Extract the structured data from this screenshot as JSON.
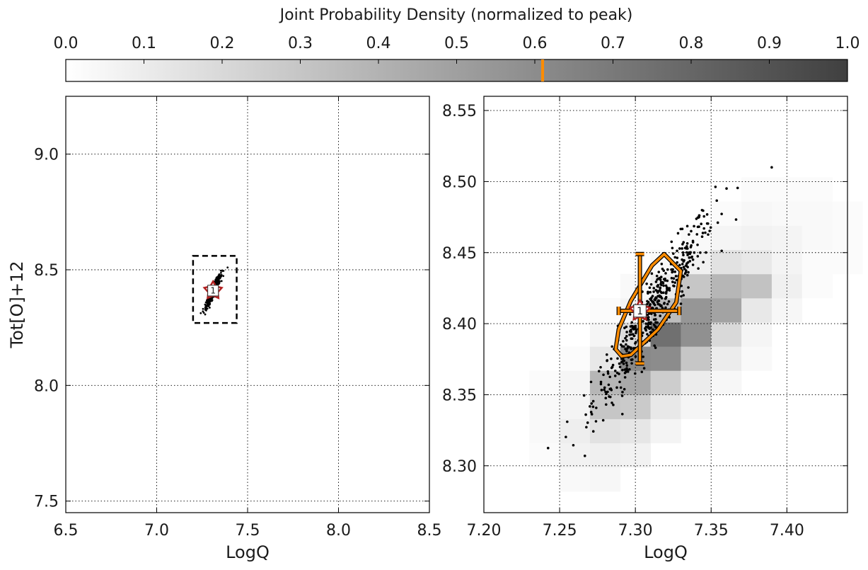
{
  "chart_data": {
    "colorbar": {
      "title": "Joint Probability Density (normalized to peak)",
      "range": [
        0.0,
        1.0
      ],
      "tick_labels": [
        "0.0",
        "0.1",
        "0.2",
        "0.3",
        "0.4",
        "0.5",
        "0.6",
        "0.7",
        "0.8",
        "0.9",
        "1.0"
      ],
      "cmap_colors": [
        "#ffffff",
        "#404040"
      ],
      "marker_value": 0.61,
      "marker_color": "#ff8c00"
    },
    "panels": [
      {
        "type": "scatter",
        "xlabel": "LogQ",
        "ylabel": "Tot[O]+12",
        "xlim": [
          6.5,
          8.5
        ],
        "ylim": [
          7.45,
          9.25
        ],
        "xticks": [
          6.5,
          7.0,
          7.5,
          8.0,
          8.5
        ],
        "xtick_labels": [
          "6.5",
          "7.0",
          "7.5",
          "8.0",
          "8.5"
        ],
        "yticks": [
          7.5,
          8.0,
          8.5,
          9.0
        ],
        "ytick_labels": [
          "7.5",
          "8.0",
          "8.5",
          "9.0"
        ],
        "grid": true,
        "zoom_box": {
          "x": [
            7.2,
            7.44
          ],
          "y": [
            8.27,
            8.56
          ]
        },
        "best_fit": {
          "x": 7.31,
          "y": 8.41,
          "label": "1"
        }
      },
      {
        "type": "heatmap",
        "xlabel": "LogQ",
        "ylabel": "",
        "xlim": [
          7.2,
          7.44
        ],
        "ylim": [
          8.267,
          8.56
        ],
        "xticks": [
          7.2,
          7.25,
          7.3,
          7.35,
          7.4
        ],
        "xtick_labels": [
          "7.20",
          "7.25",
          "7.30",
          "7.35",
          "7.40"
        ],
        "yticks": [
          8.3,
          8.35,
          8.4,
          8.45,
          8.5,
          8.55
        ],
        "ytick_labels": [
          "8.30",
          "8.35",
          "8.40",
          "8.45",
          "8.50",
          "8.55"
        ],
        "grid": true,
        "bins": {
          "x0": 7.23,
          "dx": 0.02,
          "y0": 8.265,
          "dy": 0.017
        },
        "density_cells": [
          [
            0,
            2,
            0.02
          ],
          [
            0,
            3,
            0.03
          ],
          [
            0,
            4,
            0.03
          ],
          [
            0,
            5,
            0.02
          ],
          [
            1,
            1,
            0.03
          ],
          [
            1,
            2,
            0.07
          ],
          [
            1,
            3,
            0.09
          ],
          [
            1,
            4,
            0.06
          ],
          [
            1,
            5,
            0.05
          ],
          [
            1,
            6,
            0.02
          ],
          [
            2,
            1,
            0.04
          ],
          [
            2,
            2,
            0.08
          ],
          [
            2,
            3,
            0.15
          ],
          [
            2,
            4,
            0.3
          ],
          [
            2,
            5,
            0.38
          ],
          [
            2,
            6,
            0.12
          ],
          [
            2,
            7,
            0.05
          ],
          [
            2,
            8,
            0.02
          ],
          [
            3,
            2,
            0.07
          ],
          [
            3,
            3,
            0.13
          ],
          [
            3,
            4,
            0.28
          ],
          [
            3,
            5,
            0.45
          ],
          [
            3,
            6,
            0.62
          ],
          [
            3,
            7,
            0.18
          ],
          [
            3,
            8,
            0.06
          ],
          [
            3,
            9,
            0.03
          ],
          [
            4,
            3,
            0.06
          ],
          [
            4,
            4,
            0.12
          ],
          [
            4,
            5,
            0.26
          ],
          [
            4,
            6,
            0.6
          ],
          [
            4,
            7,
            0.75
          ],
          [
            4,
            8,
            0.35
          ],
          [
            4,
            9,
            0.1
          ],
          [
            4,
            10,
            0.03
          ],
          [
            5,
            4,
            0.05
          ],
          [
            5,
            5,
            0.1
          ],
          [
            5,
            6,
            0.3
          ],
          [
            5,
            7,
            0.58
          ],
          [
            5,
            8,
            0.55
          ],
          [
            5,
            9,
            0.3
          ],
          [
            5,
            10,
            0.08
          ],
          [
            5,
            11,
            0.03
          ],
          [
            6,
            5,
            0.04
          ],
          [
            6,
            6,
            0.1
          ],
          [
            6,
            7,
            0.2
          ],
          [
            6,
            8,
            0.48
          ],
          [
            6,
            9,
            0.38
          ],
          [
            6,
            10,
            0.15
          ],
          [
            6,
            11,
            0.05
          ],
          [
            6,
            12,
            0.02
          ],
          [
            7,
            6,
            0.03
          ],
          [
            7,
            7,
            0.05
          ],
          [
            7,
            8,
            0.12
          ],
          [
            7,
            9,
            0.32
          ],
          [
            7,
            10,
            0.12
          ],
          [
            7,
            11,
            0.07
          ],
          [
            7,
            12,
            0.04
          ],
          [
            7,
            13,
            0.02
          ],
          [
            8,
            8,
            0.04
          ],
          [
            8,
            9,
            0.08
          ],
          [
            8,
            10,
            0.06
          ],
          [
            8,
            11,
            0.06
          ],
          [
            8,
            12,
            0.03
          ],
          [
            8,
            13,
            0.02
          ],
          [
            9,
            9,
            0.02
          ],
          [
            9,
            10,
            0.02
          ],
          [
            9,
            11,
            0.03
          ],
          [
            9,
            12,
            0.03
          ],
          [
            9,
            13,
            0.02
          ],
          [
            10,
            10,
            0.02
          ],
          [
            10,
            11,
            0.02
          ],
          [
            10,
            12,
            0.02
          ]
        ],
        "best_fit": {
          "x": 7.303,
          "y": 8.409,
          "x_err": [
            7.289,
            7.329
          ],
          "y_err": [
            8.372,
            8.449
          ],
          "label": "1"
        },
        "contour": [
          [
            7.287,
            8.382
          ],
          [
            7.289,
            8.396
          ],
          [
            7.297,
            8.416
          ],
          [
            7.311,
            8.441
          ],
          [
            7.319,
            8.449
          ],
          [
            7.33,
            8.437
          ],
          [
            7.327,
            8.415
          ],
          [
            7.315,
            8.396
          ],
          [
            7.297,
            8.378
          ],
          [
            7.291,
            8.377
          ]
        ],
        "contour_color": "#ff8c00"
      }
    ]
  }
}
